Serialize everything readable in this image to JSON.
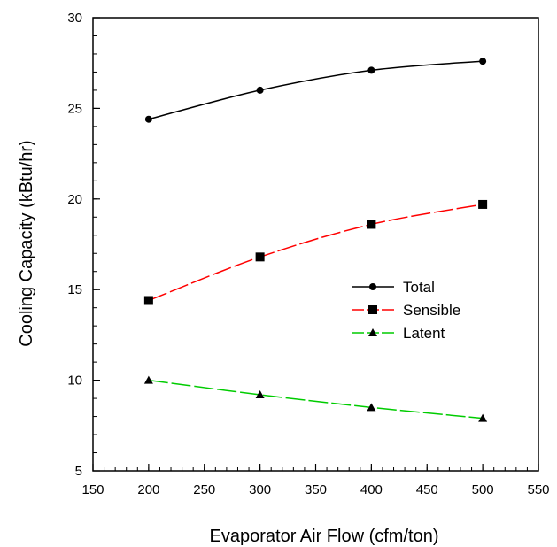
{
  "chart_data": {
    "type": "line",
    "title": "",
    "xlabel": "Evaporator Air Flow (cfm/ton)",
    "ylabel": "Cooling Capacity (kBtu/hr)",
    "xlim": [
      150,
      550
    ],
    "ylim": [
      5,
      30
    ],
    "x_major_ticks": [
      150,
      200,
      250,
      300,
      350,
      400,
      450,
      500,
      550
    ],
    "x_minor_step": 10,
    "y_major_ticks": [
      5,
      10,
      15,
      20,
      25,
      30
    ],
    "y_minor_step": 1,
    "grid": false,
    "legend_position": "center-right",
    "x": [
      200,
      300,
      400,
      500
    ],
    "series": [
      {
        "name": "Total",
        "values": [
          24.4,
          26.0,
          27.1,
          27.6
        ],
        "color": "#000000",
        "marker": "circle",
        "line_style": "solid"
      },
      {
        "name": "Sensible",
        "values": [
          14.4,
          16.8,
          18.6,
          19.7
        ],
        "color": "#ff0000",
        "marker": "square",
        "line_style": "dashed"
      },
      {
        "name": "Latent",
        "values": [
          10.0,
          9.2,
          8.5,
          7.9
        ],
        "color": "#00cc00",
        "marker": "triangle",
        "line_style": "dashed"
      }
    ]
  }
}
